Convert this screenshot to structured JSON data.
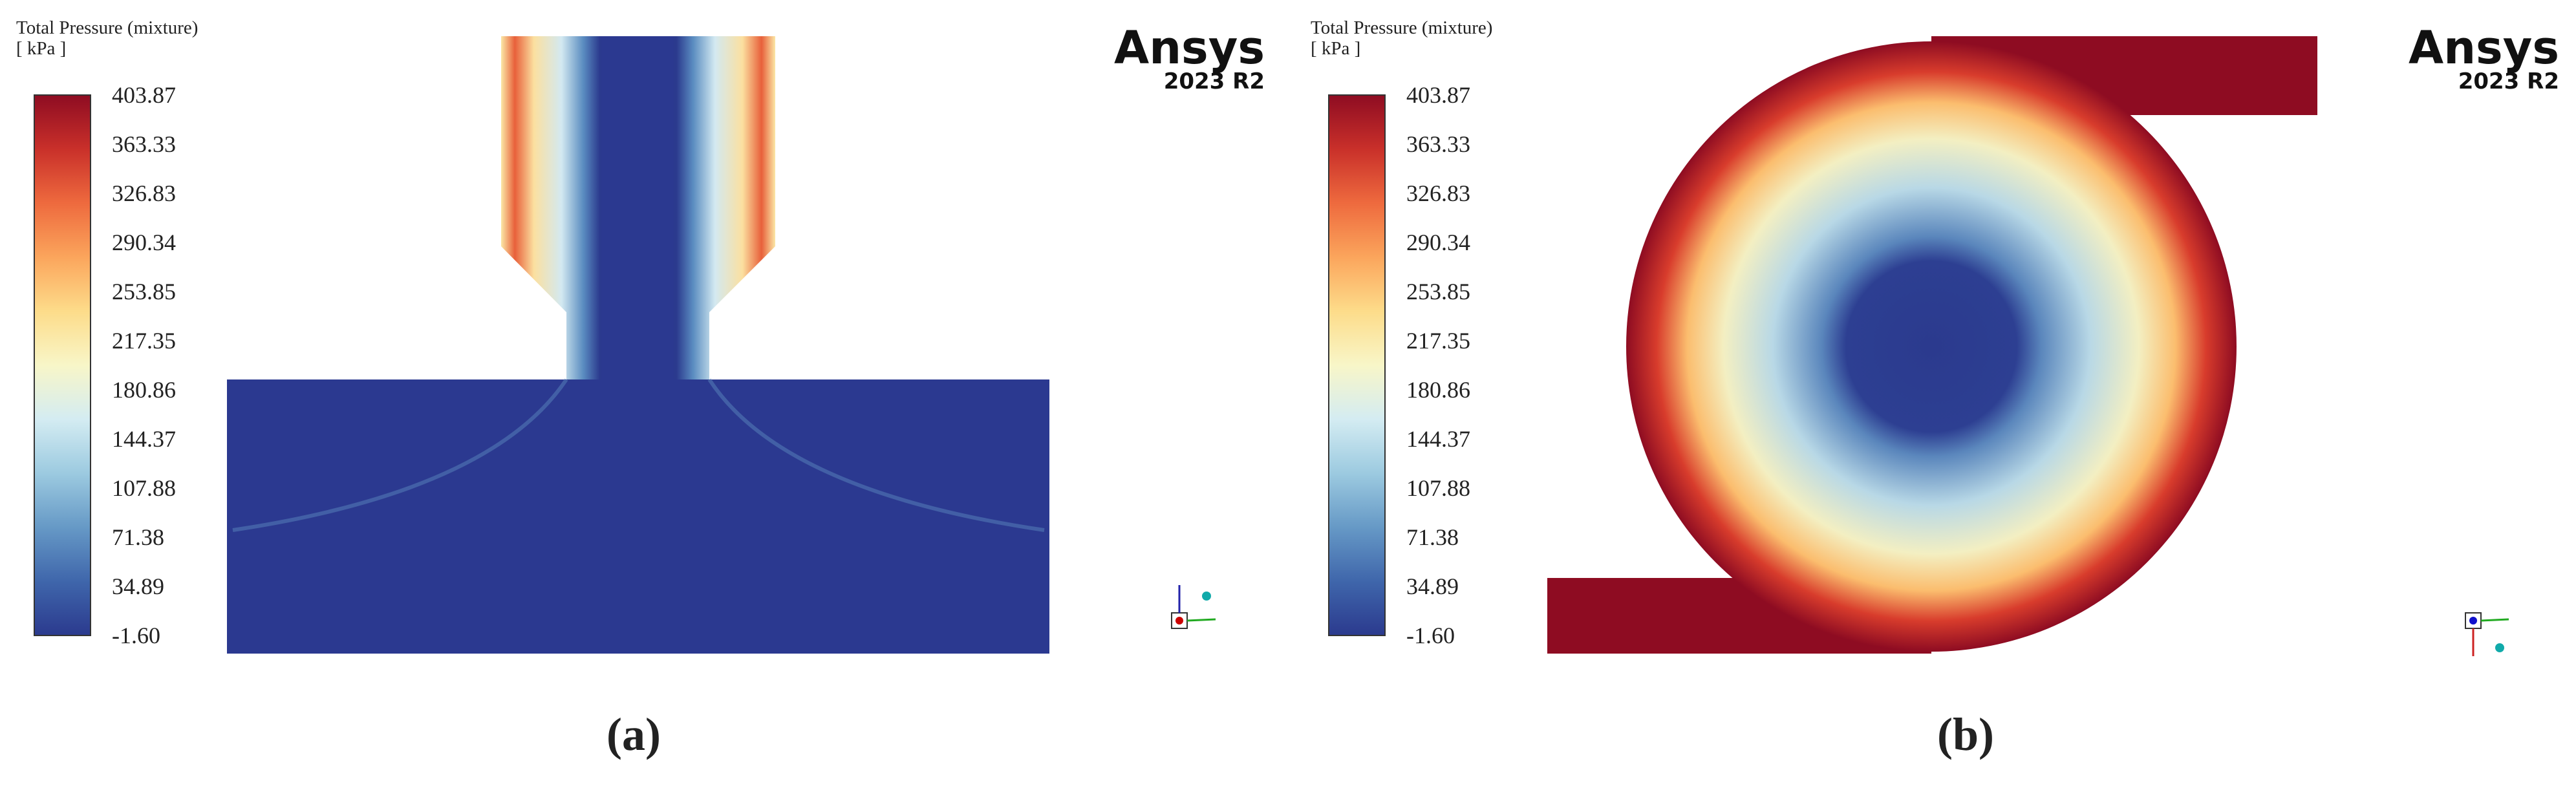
{
  "panels": [
    {
      "legend": {
        "title": "Total Pressure (mixture)",
        "unit": "[ kPa ]",
        "ticks": [
          "403.87",
          "363.33",
          "326.83",
          "290.34",
          "253.85",
          "217.35",
          "180.86",
          "144.37",
          "107.88",
          "71.38",
          "34.89",
          "-1.60"
        ]
      },
      "logo": {
        "brand": "Ansys",
        "version": "2023 R2"
      },
      "label": "(a)"
    },
    {
      "legend": {
        "title": "Total Pressure (mixture)",
        "unit": "[ kPa ]",
        "ticks": [
          "403.87",
          "363.33",
          "326.83",
          "290.34",
          "253.85",
          "217.35",
          "180.86",
          "144.37",
          "107.88",
          "71.38",
          "34.89",
          "-1.60"
        ]
      },
      "logo": {
        "brand": "Ansys",
        "version": "2023 R2"
      },
      "label": "(b)"
    }
  ]
}
